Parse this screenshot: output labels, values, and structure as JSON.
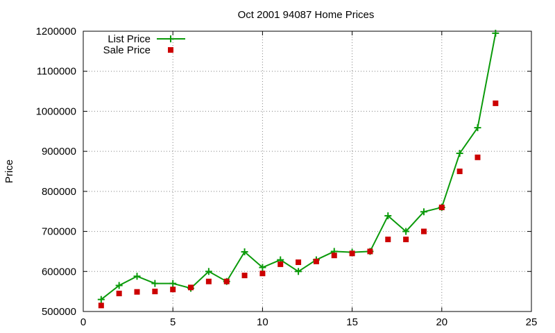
{
  "chart_data": {
    "type": "line",
    "title": "Oct 2001 94087 Home Prices",
    "xlabel": "",
    "ylabel": "Price",
    "xlim": [
      0,
      25
    ],
    "ylim": [
      500000,
      1200000
    ],
    "xticks": [
      0,
      5,
      10,
      15,
      20,
      25
    ],
    "yticks": [
      500000,
      600000,
      700000,
      800000,
      900000,
      1000000,
      1100000,
      1200000
    ],
    "grid": true,
    "legend_position": "top-left",
    "series": [
      {
        "name": "List Price",
        "style": "line+plus",
        "color": "#0a9a0a",
        "x": [
          1,
          2,
          3,
          4,
          5,
          6,
          7,
          8,
          9,
          10,
          11,
          12,
          13,
          14,
          15,
          16,
          17,
          18,
          19,
          20,
          21,
          22,
          23
        ],
        "values": [
          530000,
          565000,
          588000,
          570000,
          570000,
          558000,
          600000,
          575000,
          649000,
          610000,
          629000,
          600000,
          629000,
          650000,
          648000,
          650000,
          739000,
          700000,
          749000,
          760000,
          895000,
          959000,
          1195000
        ]
      },
      {
        "name": "Sale Price",
        "style": "square",
        "color": "#cc0000",
        "x": [
          1,
          2,
          3,
          4,
          5,
          6,
          7,
          8,
          9,
          10,
          11,
          12,
          13,
          14,
          15,
          16,
          17,
          18,
          19,
          20,
          21,
          22,
          23
        ],
        "values": [
          515000,
          545000,
          549000,
          550000,
          555000,
          560000,
          575000,
          575000,
          590000,
          595000,
          618000,
          623000,
          625000,
          640000,
          645000,
          650000,
          680000,
          680000,
          700000,
          760000,
          850000,
          885000,
          1020000
        ]
      }
    ]
  }
}
